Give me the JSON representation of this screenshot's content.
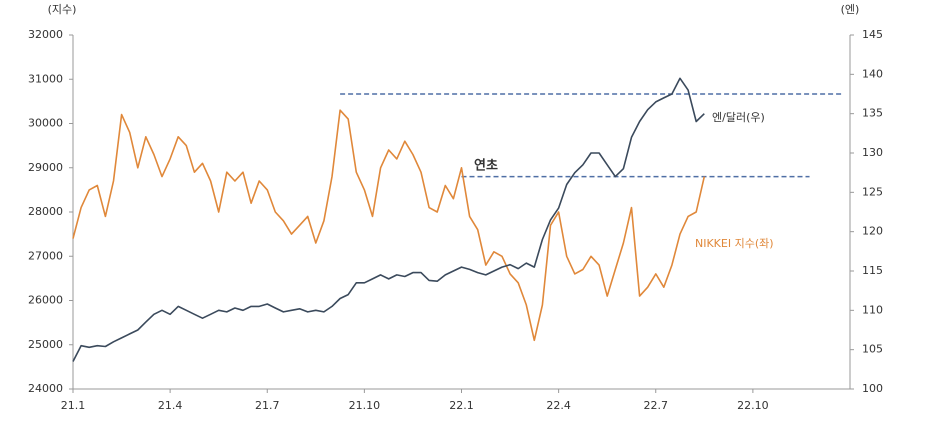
{
  "chart_data": {
    "type": "line",
    "y_unit_label": "(지수)",
    "y2_unit_label": "(엔)",
    "categories": [
      "21.1",
      null,
      null,
      null,
      null,
      null,
      null,
      null,
      null,
      null,
      null,
      null,
      "21.4",
      null,
      null,
      null,
      null,
      null,
      null,
      null,
      null,
      null,
      null,
      null,
      "21.7",
      null,
      null,
      null,
      null,
      null,
      null,
      null,
      null,
      null,
      null,
      null,
      "21.10",
      null,
      null,
      null,
      null,
      null,
      null,
      null,
      null,
      null,
      null,
      null,
      "22.1",
      null,
      null,
      null,
      null,
      null,
      null,
      null,
      null,
      null,
      null,
      null,
      "22.4",
      null,
      null,
      null,
      null,
      null,
      null,
      null,
      null,
      null,
      null,
      null,
      "22.7",
      null,
      null,
      null,
      null,
      null,
      null,
      null,
      null,
      null,
      null,
      null,
      "22.10",
      null,
      null,
      null,
      null,
      null,
      null,
      null,
      null,
      null,
      null,
      null
    ],
    "series": [
      {
        "name": "NIKKEI 지수(좌)",
        "color": "#e0883a",
        "axis": "y",
        "values": [
          27400,
          28100,
          28500,
          28600,
          27900,
          28700,
          30200,
          29800,
          29000,
          29700,
          29300,
          28800,
          29200,
          29700,
          29500,
          28900,
          29100,
          28700,
          28000,
          28900,
          28700,
          28900,
          28200,
          28700,
          28500,
          28000,
          27800,
          27500,
          27700,
          27900,
          27300,
          27800,
          28800,
          30300,
          30100,
          28900,
          28500,
          27900,
          29000,
          29400,
          29200,
          29600,
          29300,
          28900,
          28100,
          28000,
          28600,
          28300,
          29000,
          27900,
          27600,
          26800,
          27100,
          27000,
          26600,
          26400,
          25900,
          25100,
          25900,
          27700,
          28000,
          27000,
          26600,
          26700,
          27000,
          26800,
          26100,
          26700,
          27300,
          28100,
          26100,
          26300,
          26600,
          26300,
          26800,
          27500,
          27900,
          28000,
          28800,
          null,
          null,
          null,
          null,
          null,
          null,
          null,
          null,
          null,
          null,
          null,
          null,
          null,
          null,
          null,
          null,
          null
        ]
      },
      {
        "name": "엔/달러(우)",
        "color": "#3b4a5c",
        "axis": "y2",
        "values": [
          103.5,
          105.5,
          105.3,
          105.5,
          105.4,
          106,
          106.5,
          107,
          107.5,
          108.5,
          109.5,
          110,
          109.5,
          110.5,
          110,
          109.5,
          109,
          109.5,
          110,
          109.8,
          110.3,
          110,
          110.5,
          110.5,
          110.8,
          110.3,
          109.8,
          110,
          110.2,
          109.8,
          110,
          109.8,
          110.5,
          111.5,
          112,
          113.5,
          113.5,
          114,
          114.5,
          114,
          114.5,
          114.3,
          114.8,
          114.8,
          113.8,
          113.7,
          114.5,
          115,
          115.5,
          115.2,
          114.8,
          114.5,
          115,
          115.5,
          115.8,
          115.3,
          116,
          115.5,
          119,
          121.5,
          123,
          126,
          127.5,
          128.5,
          130,
          130,
          128.5,
          127,
          128,
          132,
          134,
          135.5,
          136.5,
          137,
          137.5,
          139.5,
          138,
          134,
          135,
          null,
          null,
          null,
          null,
          null,
          null,
          null,
          null,
          null,
          null,
          null,
          null,
          null,
          null,
          null,
          null,
          null
        ]
      }
    ],
    "reference_lines": [
      {
        "axis": "y2",
        "value": 137.5,
        "from": 33,
        "to": 95
      },
      {
        "axis": "y2",
        "value": 127,
        "from": 48,
        "to": 91
      }
    ],
    "annotations": [
      {
        "text": "연초"
      }
    ],
    "ylim": [
      24000,
      32000
    ],
    "yticks": [
      24000,
      25000,
      26000,
      27000,
      28000,
      29000,
      30000,
      31000,
      32000
    ],
    "y2lim": [
      100,
      145
    ],
    "y2ticks": [
      100,
      105,
      110,
      115,
      120,
      125,
      130,
      135,
      140,
      145
    ]
  }
}
